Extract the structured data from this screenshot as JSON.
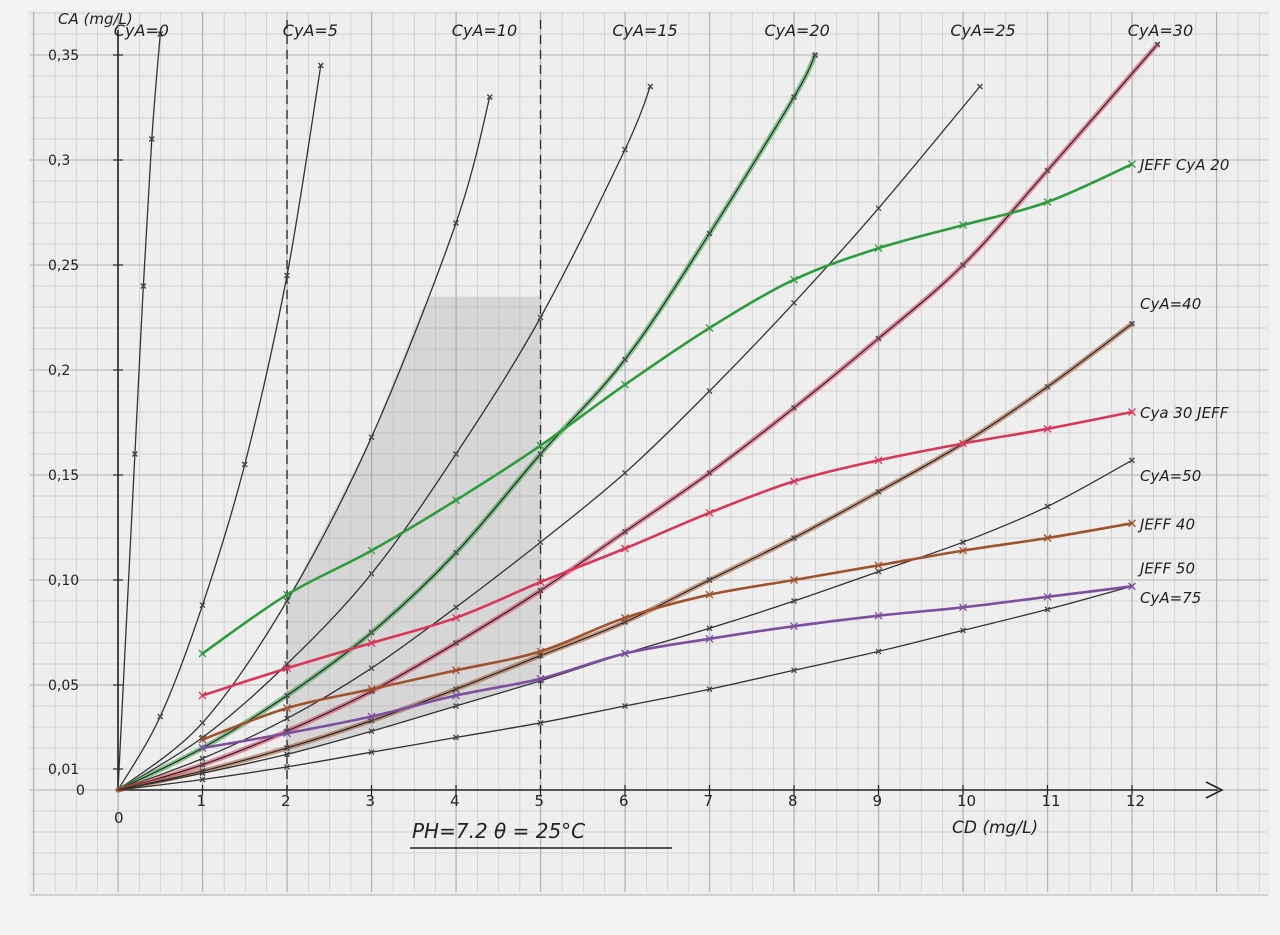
{
  "chart_data": {
    "type": "line",
    "xlabel": "CD (mg/L)",
    "ylabel": "CA (mg/L)",
    "xlim": [
      0,
      13
    ],
    "ylim": [
      0,
      0.37
    ],
    "x_ticks": [
      "0",
      "1",
      "2",
      "3",
      "4",
      "5",
      "6",
      "7",
      "8",
      "9",
      "10",
      "11",
      "12"
    ],
    "y_ticks": [
      {
        "value": 0,
        "label": "0"
      },
      {
        "value": 0.01,
        "label": "0,01"
      },
      {
        "value": 0.05,
        "label": "0,05"
      },
      {
        "value": 0.1,
        "label": "0,10"
      },
      {
        "value": 0.15,
        "label": "0,15"
      },
      {
        "value": 0.2,
        "label": "0,2"
      },
      {
        "value": 0.25,
        "label": "0,25"
      },
      {
        "value": 0.3,
        "label": "0,3"
      },
      {
        "value": 0.35,
        "label": "0,35"
      }
    ],
    "vertical_dashed_lines": [
      2,
      5
    ],
    "grid": true,
    "series": [
      {
        "name": "CyA=0",
        "color": "#333333",
        "x": [
          0,
          0.2,
          0.3,
          0.4,
          0.5
        ],
        "y": [
          0,
          0.16,
          0.24,
          0.31,
          0.36
        ]
      },
      {
        "name": "CyA=5",
        "color": "#333333",
        "x": [
          0,
          0.5,
          1,
          1.5,
          2,
          2.4
        ],
        "y": [
          0,
          0.035,
          0.088,
          0.155,
          0.245,
          0.345
        ]
      },
      {
        "name": "CyA=10",
        "color": "#333333",
        "x": [
          0,
          1,
          2,
          3,
          4,
          4.4
        ],
        "y": [
          0,
          0.032,
          0.09,
          0.168,
          0.27,
          0.33
        ]
      },
      {
        "name": "CyA=15",
        "color": "#333333",
        "x": [
          0,
          1,
          2,
          3,
          4,
          5,
          6,
          6.3
        ],
        "y": [
          0,
          0.025,
          0.06,
          0.103,
          0.16,
          0.225,
          0.305,
          0.335
        ]
      },
      {
        "name": "CyA=20",
        "color": "#2e9b3c",
        "x": [
          0,
          1,
          2,
          3,
          4,
          5,
          6,
          7,
          8,
          8.25
        ],
        "y": [
          0,
          0.02,
          0.045,
          0.075,
          0.113,
          0.16,
          0.205,
          0.265,
          0.33,
          0.35
        ]
      },
      {
        "name": "CyA=25",
        "color": "#333333",
        "x": [
          0,
          1,
          2,
          3,
          4,
          5,
          6,
          7,
          8,
          9,
          10.2
        ],
        "y": [
          0,
          0.015,
          0.034,
          0.058,
          0.087,
          0.118,
          0.151,
          0.19,
          0.232,
          0.277,
          0.335
        ]
      },
      {
        "name": "CyA=30",
        "color": "#d9365a",
        "x": [
          0,
          1,
          2,
          3,
          4,
          5,
          6,
          7,
          8,
          9,
          10,
          11,
          12.3
        ],
        "y": [
          0,
          0.012,
          0.028,
          0.047,
          0.07,
          0.095,
          0.123,
          0.151,
          0.182,
          0.215,
          0.25,
          0.295,
          0.355
        ]
      },
      {
        "name": "CyA=40",
        "color": "#a0522d",
        "x": [
          0,
          1,
          2,
          3,
          4,
          5,
          6,
          7,
          8,
          9,
          10,
          11,
          12
        ],
        "y": [
          0,
          0.009,
          0.02,
          0.033,
          0.048,
          0.064,
          0.08,
          0.1,
          0.12,
          0.142,
          0.165,
          0.192,
          0.222
        ]
      },
      {
        "name": "CyA=50",
        "color": "#333333",
        "x": [
          0,
          1,
          2,
          3,
          4,
          5,
          6,
          7,
          8,
          9,
          10,
          11,
          12
        ],
        "y": [
          0,
          0.008,
          0.017,
          0.028,
          0.04,
          0.052,
          0.065,
          0.077,
          0.09,
          0.104,
          0.118,
          0.135,
          0.157
        ]
      },
      {
        "name": "CyA=75",
        "color": "#333333",
        "x": [
          0,
          1,
          2,
          3,
          4,
          5,
          6,
          7,
          8,
          9,
          10,
          11,
          12
        ],
        "y": [
          0,
          0.005,
          0.011,
          0.018,
          0.025,
          0.032,
          0.04,
          0.048,
          0.057,
          0.066,
          0.076,
          0.086,
          0.097
        ]
      },
      {
        "name": "JEFF CyA 20",
        "color": "#2e9b3c",
        "x": [
          1,
          2,
          3,
          4,
          5,
          6,
          7,
          8,
          9,
          10,
          11,
          12
        ],
        "y": [
          0.065,
          0.093,
          0.114,
          0.138,
          0.164,
          0.193,
          0.22,
          0.243,
          0.258,
          0.269,
          0.28,
          0.298
        ]
      },
      {
        "name": "Cya 30 JEFF",
        "color": "#d9365a",
        "x": [
          1,
          2,
          3,
          4,
          5,
          6,
          7,
          8,
          9,
          10,
          11,
          12
        ],
        "y": [
          0.045,
          0.058,
          0.07,
          0.082,
          0.099,
          0.115,
          0.132,
          0.147,
          0.157,
          0.165,
          0.172,
          0.18
        ]
      },
      {
        "name": "JEFF 40",
        "color": "#a0522d",
        "x": [
          1,
          2,
          3,
          4,
          5,
          6,
          7,
          8,
          9,
          10,
          11,
          12
        ],
        "y": [
          0.024,
          0.039,
          0.048,
          0.057,
          0.066,
          0.082,
          0.093,
          0.1,
          0.107,
          0.114,
          0.12,
          0.127
        ]
      },
      {
        "name": "JEFF 50",
        "color": "#7d4fa0",
        "x": [
          1,
          2,
          3,
          4,
          5,
          6,
          7,
          8,
          9,
          10,
          11,
          12
        ],
        "y": [
          0.02,
          0.027,
          0.035,
          0.045,
          0.053,
          0.065,
          0.072,
          0.078,
          0.083,
          0.087,
          0.092,
          0.097
        ]
      }
    ],
    "top_labels": [
      {
        "x": 0.4,
        "text": "CyA=0"
      },
      {
        "x": 2.4,
        "text": "CyA=5"
      },
      {
        "x": 4.4,
        "text": "CyA=10"
      },
      {
        "x": 6.3,
        "text": "CyA=15"
      },
      {
        "x": 8.1,
        "text": "CyA=20"
      },
      {
        "x": 10.3,
        "text": "CyA=25"
      },
      {
        "x": 12.4,
        "text": "CyA=30"
      }
    ],
    "right_labels": [
      {
        "series": "JEFF CyA 20",
        "text": "JEFF CyA 20",
        "y": 0.298
      },
      {
        "series": "CyA=40",
        "text": "CyA=40",
        "y": 0.232
      },
      {
        "series": "Cya 30 JEFF",
        "text": "Cya 30 JEFF",
        "y": 0.18
      },
      {
        "series": "CyA=50",
        "text": "CyA=50",
        "y": 0.15
      },
      {
        "series": "JEFF 40",
        "text": "JEFF 40",
        "y": 0.127
      },
      {
        "series": "JEFF 50",
        "text": "JEFF 50",
        "y": 0.106
      },
      {
        "series": "CyA=75",
        "text": "CyA=75",
        "y": 0.092
      }
    ],
    "annotation": "PH=7.2  θ = 25°C",
    "shaded_region_x": [
      2,
      5
    ]
  }
}
